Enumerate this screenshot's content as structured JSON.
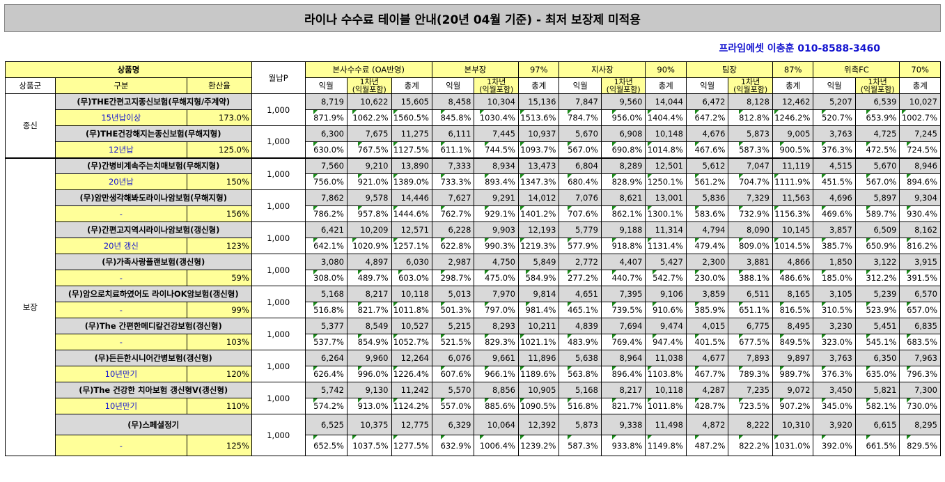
{
  "title": "라이나 수수료 테이블 안내(20년 04월 기준) - 최저 보장제 미적용",
  "contact": "프라임에셋 이충훈 010-8588-3460",
  "header": {
    "product_name": "상품명",
    "monthly_p": "월납P",
    "group": "상품군",
    "division": "구분",
    "conversion": "환산율",
    "hq_fee": "본사수수료 (OA반영)",
    "bonbu": "본부장",
    "bonbu_pct": "97%",
    "jisa": "지사장",
    "jisa_pct": "90%",
    "team": "팀장",
    "team_pct": "87%",
    "fc": "위촉FC",
    "fc_pct": "70%",
    "ikwol": "익월",
    "first_year": "1차년\n(익월포함)",
    "total": "총계"
  },
  "groups": [
    {
      "name": "종신",
      "span": 4
    },
    {
      "name": "보장",
      "span": 18
    }
  ],
  "products": [
    {
      "name": "(무)THE간편고지종신보험(무해지형/주계약)",
      "sub": "15년납이상",
      "rate": "173.0%",
      "monthly": "1,000",
      "amounts": [
        "8,719",
        "10,622",
        "15,605",
        "8,458",
        "10,304",
        "15,136",
        "7,847",
        "9,560",
        "14,044",
        "6,472",
        "8,128",
        "12,462",
        "5,207",
        "6,539",
        "10,027"
      ],
      "percents": [
        "871.9%",
        "1062.2%",
        "1560.5%",
        "845.8%",
        "1030.4%",
        "1513.6%",
        "784.7%",
        "956.0%",
        "1404.4%",
        "647.2%",
        "812.8%",
        "1246.2%",
        "520.7%",
        "653.9%",
        "1002.7%"
      ]
    },
    {
      "name": "(무)THE건강해지는종신보험(무해지형)",
      "sub": "12년납",
      "rate": "125.0%",
      "monthly": "1,000",
      "amounts": [
        "6,300",
        "7,675",
        "11,275",
        "6,111",
        "7,445",
        "10,937",
        "5,670",
        "6,908",
        "10,148",
        "4,676",
        "5,873",
        "9,005",
        "3,763",
        "4,725",
        "7,245"
      ],
      "percents": [
        "630.0%",
        "767.5%",
        "1127.5%",
        "611.1%",
        "744.5%",
        "1093.7%",
        "567.0%",
        "690.8%",
        "1014.8%",
        "467.6%",
        "587.3%",
        "900.5%",
        "376.3%",
        "472.5%",
        "724.5%"
      ]
    },
    {
      "name": "(무)간병비계속주는치매보험(무해지형)",
      "sub": "20년납",
      "rate": "150%",
      "monthly": "1,000",
      "amounts": [
        "7,560",
        "9,210",
        "13,890",
        "7,333",
        "8,934",
        "13,473",
        "6,804",
        "8,289",
        "12,501",
        "5,612",
        "7,047",
        "11,119",
        "4,515",
        "5,670",
        "8,946"
      ],
      "percents": [
        "756.0%",
        "921.0%",
        "1389.0%",
        "733.3%",
        "893.4%",
        "1347.3%",
        "680.4%",
        "828.9%",
        "1250.1%",
        "561.2%",
        "704.7%",
        "1111.9%",
        "451.5%",
        "567.0%",
        "894.6%"
      ]
    },
    {
      "name": "(무)암만생각해봐도라이나암보험(무해지형)",
      "sub": "-",
      "rate": "156%",
      "monthly": "1,000",
      "amounts": [
        "7,862",
        "9,578",
        "14,446",
        "7,627",
        "9,291",
        "14,012",
        "7,076",
        "8,621",
        "13,001",
        "5,836",
        "7,329",
        "11,563",
        "4,696",
        "5,897",
        "9,304"
      ],
      "percents": [
        "786.2%",
        "957.8%",
        "1444.6%",
        "762.7%",
        "929.1%",
        "1401.2%",
        "707.6%",
        "862.1%",
        "1300.1%",
        "583.6%",
        "732.9%",
        "1156.3%",
        "469.6%",
        "589.7%",
        "930.4%"
      ]
    },
    {
      "name": "(무)간편고지역시라이나암보험(갱신형)",
      "sub": "20년 갱신",
      "rate": "123%",
      "monthly": "1,000",
      "amounts": [
        "6,421",
        "10,209",
        "12,571",
        "6,228",
        "9,903",
        "12,193",
        "5,779",
        "9,188",
        "11,314",
        "4,794",
        "8,090",
        "10,145",
        "3,857",
        "6,509",
        "8,162"
      ],
      "percents": [
        "642.1%",
        "1020.9%",
        "1257.1%",
        "622.8%",
        "990.3%",
        "1219.3%",
        "577.9%",
        "918.8%",
        "1131.4%",
        "479.4%",
        "809.0%",
        "1014.5%",
        "385.7%",
        "650.9%",
        "816.2%"
      ]
    },
    {
      "name": "(무)가족사랑플랜보험(갱신형)",
      "sub": "-",
      "rate": "59%",
      "monthly": "1,000",
      "amounts": [
        "3,080",
        "4,897",
        "6,030",
        "2,987",
        "4,750",
        "5,849",
        "2,772",
        "4,407",
        "5,427",
        "2,300",
        "3,881",
        "4,866",
        "1,850",
        "3,122",
        "3,915"
      ],
      "percents": [
        "308.0%",
        "489.7%",
        "603.0%",
        "298.7%",
        "475.0%",
        "584.9%",
        "277.2%",
        "440.7%",
        "542.7%",
        "230.0%",
        "388.1%",
        "486.6%",
        "185.0%",
        "312.2%",
        "391.5%"
      ]
    },
    {
      "name": "(무)암으로치료하였어도 라이나OK암보험(갱신형)",
      "sub": "-",
      "rate": "99%",
      "monthly": "1,000",
      "amounts": [
        "5,168",
        "8,217",
        "10,118",
        "5,013",
        "7,970",
        "9,814",
        "4,651",
        "7,395",
        "9,106",
        "3,859",
        "6,511",
        "8,165",
        "3,105",
        "5,239",
        "6,570"
      ],
      "percents": [
        "516.8%",
        "821.7%",
        "1011.8%",
        "501.3%",
        "797.0%",
        "981.4%",
        "465.1%",
        "739.5%",
        "910.6%",
        "385.9%",
        "651.1%",
        "816.5%",
        "310.5%",
        "523.9%",
        "657.0%"
      ]
    },
    {
      "name": "(무)The 간편한메디칼건강보험(갱신형)",
      "sub": "-",
      "rate": "103%",
      "monthly": "1,000",
      "amounts": [
        "5,377",
        "8,549",
        "10,527",
        "5,215",
        "8,293",
        "10,211",
        "4,839",
        "7,694",
        "9,474",
        "4,015",
        "6,775",
        "8,495",
        "3,230",
        "5,451",
        "6,835"
      ],
      "percents": [
        "537.7%",
        "854.9%",
        "1052.7%",
        "521.5%",
        "829.3%",
        "1021.1%",
        "483.9%",
        "769.4%",
        "947.4%",
        "401.5%",
        "677.5%",
        "849.5%",
        "323.0%",
        "545.1%",
        "683.5%"
      ]
    },
    {
      "name": "(무)든든한시니어간병보험(갱신형)",
      "sub": "10년만기",
      "rate": "120%",
      "monthly": "1,000",
      "amounts": [
        "6,264",
        "9,960",
        "12,264",
        "6,076",
        "9,661",
        "11,896",
        "5,638",
        "8,964",
        "11,038",
        "4,677",
        "7,893",
        "9,897",
        "3,763",
        "6,350",
        "7,963"
      ],
      "percents": [
        "626.4%",
        "996.0%",
        "1226.4%",
        "607.6%",
        "966.1%",
        "1189.6%",
        "563.8%",
        "896.4%",
        "1103.8%",
        "467.7%",
        "789.3%",
        "989.7%",
        "376.3%",
        "635.0%",
        "796.3%"
      ]
    },
    {
      "name": "(무)The 건강한 치아보험 갱신형V(갱신형)",
      "sub": "10년만기",
      "rate": "110%",
      "monthly": "1,000",
      "amounts": [
        "5,742",
        "9,130",
        "11,242",
        "5,570",
        "8,856",
        "10,905",
        "5,168",
        "8,217",
        "10,118",
        "4,287",
        "7,235",
        "9,072",
        "3,450",
        "5,821",
        "7,300"
      ],
      "percents": [
        "574.2%",
        "913.0%",
        "1124.2%",
        "557.0%",
        "885.6%",
        "1090.5%",
        "516.8%",
        "821.7%",
        "1011.8%",
        "428.7%",
        "723.5%",
        "907.2%",
        "345.0%",
        "582.1%",
        "730.0%"
      ]
    },
    {
      "name": "(무)스페셜정기",
      "sub": "-",
      "rate": "125%",
      "monthly": "1,000",
      "amounts": [
        "6,525",
        "10,375",
        "12,775",
        "6,329",
        "10,064",
        "12,392",
        "5,873",
        "9,338",
        "11,498",
        "4,872",
        "8,222",
        "10,310",
        "3,920",
        "6,615",
        "8,295"
      ],
      "percents": [
        "652.5%",
        "1037.5%",
        "1277.5%",
        "632.9%",
        "1006.4%",
        "1239.2%",
        "587.3%",
        "933.8%",
        "1149.8%",
        "487.2%",
        "822.2%",
        "1031.0%",
        "392.0%",
        "661.5%",
        "829.5%"
      ]
    }
  ]
}
